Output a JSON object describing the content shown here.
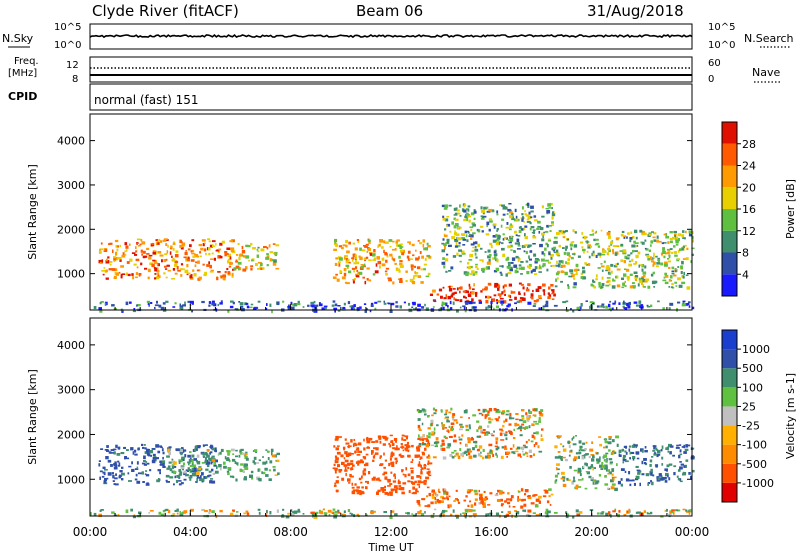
{
  "header": {
    "station": "Clyde River (fitACF)",
    "beam": "Beam 06",
    "date": "31/Aug/2018"
  },
  "top_panels": {
    "nsky_label": "N.Sky",
    "nsearch_label": "N.Search",
    "count_ticks_left": [
      "10^5",
      "10^0"
    ],
    "count_ticks_right": [
      "10^5",
      "10^0"
    ],
    "freq_label_1": "Freq.",
    "freq_label_2": "[MHz]",
    "freq_ticks": [
      "12",
      "8"
    ],
    "nave_label": "Nave",
    "nave_ticks": [
      "60",
      "0"
    ],
    "cpid_label": "CPID",
    "cpid_text": "normal (fast) 151"
  },
  "colors": {
    "power": [
      "#1a1aff",
      "#2f4fa8",
      "#3f8f6f",
      "#5fc040",
      "#e8d000",
      "#ff9a00",
      "#ff5a00",
      "#e01000"
    ],
    "velocity": [
      "#e00000",
      "#ff5000",
      "#ff8c00",
      "#ffb000",
      "#c0c0c0",
      "#60c040",
      "#3f8f6f",
      "#2f4fa8",
      "#1a3fcf"
    ]
  },
  "chart_data": [
    {
      "type": "heatmap",
      "quantity": "Power",
      "ylabel": "Slant Range [km]",
      "yticks": [
        1000,
        2000,
        3000,
        4000
      ],
      "ylim": [
        180,
        4600
      ],
      "xlim_hours": [
        0,
        24
      ],
      "colorbar": {
        "label": "Power [dB]",
        "ticks": [
          "4",
          "8",
          "12",
          "16",
          "20",
          "24",
          "28"
        ],
        "range": [
          0,
          30
        ]
      },
      "echo_regions": [
        {
          "t_start": "00:20",
          "t_end": "05:40",
          "range_km": [
            900,
            1800
          ],
          "power_db": 22
        },
        {
          "t_start": "05:30",
          "t_end": "07:30",
          "range_km": [
            1100,
            1700
          ],
          "power_db": 18
        },
        {
          "t_start": "09:40",
          "t_end": "13:30",
          "range_km": [
            800,
            1800
          ],
          "power_db": 20
        },
        {
          "t_start": "13:30",
          "t_end": "18:30",
          "range_km": [
            400,
            800
          ],
          "power_db": 28
        },
        {
          "t_start": "14:00",
          "t_end": "18:30",
          "range_km": [
            1000,
            2600
          ],
          "power_db": 12
        },
        {
          "t_start": "18:30",
          "t_end": "24:00",
          "range_km": [
            700,
            2000
          ],
          "power_db": 14
        },
        {
          "t_start": "00:00",
          "t_end": "24:00",
          "range_km": [
            180,
            400
          ],
          "power_db": 6
        }
      ]
    },
    {
      "type": "heatmap",
      "quantity": "Velocity",
      "ylabel": "Slant Range [km]",
      "xlabel": "Time UT",
      "xticks": [
        "00:00",
        "04:00",
        "08:00",
        "12:00",
        "16:00",
        "20:00",
        "00:00"
      ],
      "yticks": [
        1000,
        2000,
        3000,
        4000
      ],
      "ylim": [
        180,
        4600
      ],
      "xlim_hours": [
        0,
        24
      ],
      "colorbar": {
        "label": "Velocity [m s-1]",
        "ticks": [
          "1000",
          "500",
          "100",
          "25",
          "-25",
          "-100",
          "-500",
          "-1000"
        ]
      },
      "echo_regions": [
        {
          "t_start": "00:20",
          "t_end": "05:00",
          "range_km": [
            900,
            1800
          ],
          "velocity_ms": 600
        },
        {
          "t_start": "03:00",
          "t_end": "07:30",
          "range_km": [
            1000,
            1700
          ],
          "velocity_ms": 150
        },
        {
          "t_start": "09:40",
          "t_end": "13:30",
          "range_km": [
            700,
            2000
          ],
          "velocity_ms": -300
        },
        {
          "t_start": "13:00",
          "t_end": "18:30",
          "range_km": [
            400,
            800
          ],
          "velocity_ms": -150
        },
        {
          "t_start": "13:00",
          "t_end": "18:00",
          "range_km": [
            1500,
            2600
          ],
          "velocity_ms": 0
        },
        {
          "t_start": "18:30",
          "t_end": "21:00",
          "range_km": [
            800,
            2000
          ],
          "velocity_ms": 100
        },
        {
          "t_start": "21:00",
          "t_end": "24:00",
          "range_km": [
            900,
            1800
          ],
          "velocity_ms": 500
        },
        {
          "t_start": "00:00",
          "t_end": "24:00",
          "range_km": [
            180,
            350
          ],
          "velocity_ms": 60
        }
      ]
    }
  ]
}
